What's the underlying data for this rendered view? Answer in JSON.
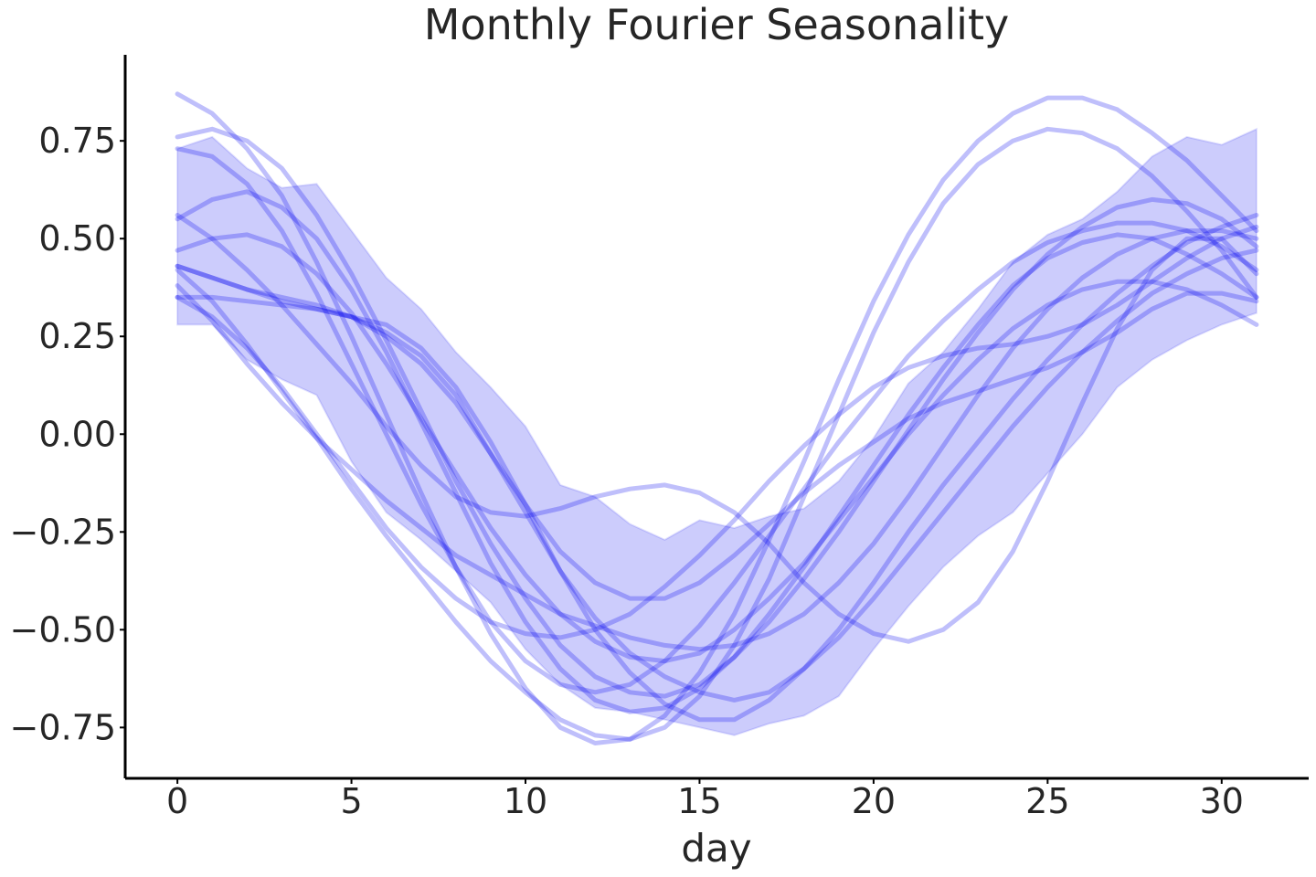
{
  "chart_data": {
    "type": "line",
    "title": "Monthly Fourier Seasonality",
    "xlabel": "day",
    "ylabel": "",
    "xlim": [
      -1.5,
      32.5
    ],
    "ylim": [
      -0.88,
      0.97
    ],
    "x_ticks": [
      0,
      5,
      10,
      15,
      20,
      25,
      30
    ],
    "x_tick_labels": [
      "0",
      "5",
      "10",
      "15",
      "20",
      "25",
      "30"
    ],
    "y_ticks": [
      0.75,
      0.5,
      0.25,
      0.0,
      -0.25,
      -0.5,
      -0.75
    ],
    "y_tick_labels": [
      "0.75",
      "0.50",
      "0.25",
      "0.00",
      "−0.25",
      "−0.50",
      "−0.75"
    ],
    "grid": false,
    "colors": {
      "series": "#0000ee",
      "text": "#262626",
      "axis": "#000000"
    },
    "band": {
      "x": [
        0,
        1,
        2,
        3,
        4,
        5,
        6,
        7,
        8,
        9,
        10,
        11,
        12,
        13,
        14,
        15,
        16,
        17,
        18,
        19,
        20,
        21,
        22,
        23,
        24,
        25,
        26,
        27,
        28,
        29,
        30,
        31
      ],
      "upper": [
        0.73,
        0.76,
        0.68,
        0.63,
        0.64,
        0.52,
        0.4,
        0.32,
        0.21,
        0.12,
        0.02,
        -0.13,
        -0.16,
        -0.23,
        -0.27,
        -0.22,
        -0.24,
        -0.21,
        -0.19,
        -0.12,
        -0.01,
        0.13,
        0.21,
        0.32,
        0.44,
        0.51,
        0.55,
        0.62,
        0.71,
        0.76,
        0.74,
        0.78
      ],
      "lower": [
        0.28,
        0.28,
        0.19,
        0.14,
        0.1,
        -0.07,
        -0.2,
        -0.27,
        -0.35,
        -0.43,
        -0.55,
        -0.64,
        -0.7,
        -0.71,
        -0.73,
        -0.75,
        -0.77,
        -0.74,
        -0.72,
        -0.67,
        -0.55,
        -0.44,
        -0.34,
        -0.26,
        -0.2,
        -0.1,
        0.0,
        0.12,
        0.19,
        0.24,
        0.28,
        0.31
      ]
    },
    "series": [
      {
        "x": [
          0,
          1,
          2,
          3,
          4,
          5,
          6,
          7,
          8,
          9,
          10,
          11,
          12,
          13,
          14,
          15,
          16,
          17,
          18,
          19,
          20,
          21,
          22,
          23,
          24,
          25,
          26,
          27,
          28,
          29,
          30,
          31
        ],
        "values": [
          0.87,
          0.82,
          0.73,
          0.61,
          0.44,
          0.25,
          0.05,
          -0.15,
          -0.34,
          -0.51,
          -0.65,
          -0.75,
          -0.79,
          -0.78,
          -0.72,
          -0.61,
          -0.46,
          -0.27,
          -0.07,
          0.14,
          0.34,
          0.51,
          0.65,
          0.75,
          0.82,
          0.86,
          0.86,
          0.83,
          0.77,
          0.7,
          0.61,
          0.52
        ]
      },
      {
        "x": [
          0,
          1,
          2,
          3,
          4,
          5,
          6,
          7,
          8,
          9,
          10,
          11,
          12,
          13,
          14,
          15,
          16,
          17,
          18,
          19,
          20,
          21,
          22,
          23,
          24,
          25,
          26,
          27,
          28,
          29,
          30,
          31
        ],
        "values": [
          0.42,
          0.34,
          0.23,
          0.11,
          -0.01,
          -0.14,
          -0.26,
          -0.37,
          -0.48,
          -0.58,
          -0.66,
          -0.73,
          -0.77,
          -0.78,
          -0.75,
          -0.67,
          -0.54,
          -0.37,
          -0.16,
          0.05,
          0.26,
          0.44,
          0.59,
          0.69,
          0.75,
          0.78,
          0.77,
          0.73,
          0.66,
          0.57,
          0.47,
          0.35
        ]
      },
      {
        "x": [
          0,
          1,
          2,
          3,
          4,
          5,
          6,
          7,
          8,
          9,
          10,
          11,
          12,
          13,
          14,
          15,
          16,
          17,
          18,
          19,
          20,
          21,
          22,
          23,
          24,
          25,
          26,
          27,
          28,
          29,
          30,
          31
        ],
        "values": [
          0.76,
          0.78,
          0.75,
          0.68,
          0.56,
          0.41,
          0.24,
          0.06,
          -0.12,
          -0.28,
          -0.42,
          -0.54,
          -0.62,
          -0.66,
          -0.67,
          -0.64,
          -0.57,
          -0.48,
          -0.37,
          -0.25,
          -0.12,
          0.01,
          0.14,
          0.26,
          0.37,
          0.46,
          0.53,
          0.58,
          0.6,
          0.59,
          0.55,
          0.48
        ]
      },
      {
        "x": [
          0,
          1,
          2,
          3,
          4,
          5,
          6,
          7,
          8,
          9,
          10,
          11,
          12,
          13,
          14,
          15,
          16,
          17,
          18,
          19,
          20,
          21,
          22,
          23,
          24,
          25,
          26,
          27,
          28,
          29,
          30,
          31
        ],
        "values": [
          0.73,
          0.71,
          0.64,
          0.52,
          0.36,
          0.18,
          0.0,
          -0.18,
          -0.34,
          -0.48,
          -0.58,
          -0.64,
          -0.66,
          -0.64,
          -0.58,
          -0.49,
          -0.38,
          -0.26,
          -0.14,
          -0.02,
          0.09,
          0.2,
          0.29,
          0.37,
          0.44,
          0.49,
          0.52,
          0.54,
          0.54,
          0.52,
          0.48,
          0.42
        ]
      },
      {
        "x": [
          0,
          1,
          2,
          3,
          4,
          5,
          6,
          7,
          8,
          9,
          10,
          11,
          12,
          13,
          14,
          15,
          16,
          17,
          18,
          19,
          20,
          21,
          22,
          23,
          24,
          25,
          26,
          27,
          28,
          29,
          30,
          31
        ],
        "values": [
          0.55,
          0.6,
          0.62,
          0.58,
          0.5,
          0.37,
          0.21,
          0.03,
          -0.15,
          -0.33,
          -0.48,
          -0.6,
          -0.68,
          -0.71,
          -0.7,
          -0.65,
          -0.57,
          -0.46,
          -0.34,
          -0.21,
          -0.08,
          0.05,
          0.17,
          0.28,
          0.38,
          0.45,
          0.49,
          0.51,
          0.5,
          0.46,
          0.41,
          0.35
        ]
      },
      {
        "x": [
          0,
          1,
          2,
          3,
          4,
          5,
          6,
          7,
          8,
          9,
          10,
          11,
          12,
          13,
          14,
          15,
          16,
          17,
          18,
          19,
          20,
          21,
          22,
          23,
          24,
          25,
          26,
          27,
          28,
          29,
          30,
          31
        ],
        "values": [
          0.47,
          0.5,
          0.51,
          0.48,
          0.41,
          0.31,
          0.18,
          0.04,
          -0.1,
          -0.24,
          -0.36,
          -0.46,
          -0.53,
          -0.57,
          -0.58,
          -0.56,
          -0.5,
          -0.42,
          -0.33,
          -0.22,
          -0.11,
          0.0,
          0.1,
          0.19,
          0.27,
          0.33,
          0.37,
          0.39,
          0.39,
          0.37,
          0.33,
          0.28
        ]
      },
      {
        "x": [
          0,
          1,
          2,
          3,
          4,
          5,
          6,
          7,
          8,
          9,
          10,
          11,
          12,
          13,
          14,
          15,
          16,
          17,
          18,
          19,
          20,
          21,
          22,
          23,
          24,
          25,
          26,
          27,
          28,
          29,
          30,
          31
        ],
        "values": [
          0.43,
          0.4,
          0.37,
          0.34,
          0.32,
          0.3,
          0.28,
          0.22,
          0.12,
          -0.02,
          -0.18,
          -0.35,
          -0.5,
          -0.61,
          -0.69,
          -0.73,
          -0.73,
          -0.68,
          -0.6,
          -0.5,
          -0.38,
          -0.25,
          -0.13,
          -0.02,
          0.09,
          0.19,
          0.28,
          0.36,
          0.43,
          0.49,
          0.53,
          0.56
        ]
      },
      {
        "x": [
          0,
          1,
          2,
          3,
          4,
          5,
          6,
          7,
          8,
          9,
          10,
          11,
          12,
          13,
          14,
          15,
          16,
          17,
          18,
          19,
          20,
          21,
          22,
          23,
          24,
          25,
          26,
          27,
          28,
          29,
          30,
          31
        ],
        "values": [
          0.38,
          0.29,
          0.18,
          0.08,
          -0.01,
          -0.09,
          -0.17,
          -0.24,
          -0.31,
          -0.36,
          -0.41,
          -0.46,
          -0.49,
          -0.52,
          -0.54,
          -0.55,
          -0.54,
          -0.51,
          -0.46,
          -0.38,
          -0.28,
          -0.16,
          -0.03,
          0.1,
          0.22,
          0.32,
          0.4,
          0.46,
          0.5,
          0.52,
          0.52,
          0.5
        ]
      },
      {
        "x": [
          0,
          1,
          2,
          3,
          4,
          5,
          6,
          7,
          8,
          9,
          10,
          11,
          12,
          13,
          14,
          15,
          16,
          17,
          18,
          19,
          20,
          21,
          22,
          23,
          24,
          25,
          26,
          27,
          28,
          29,
          30,
          31
        ],
        "values": [
          0.35,
          0.35,
          0.34,
          0.33,
          0.32,
          0.3,
          0.26,
          0.2,
          0.1,
          -0.05,
          -0.2,
          -0.35,
          -0.47,
          -0.56,
          -0.62,
          -0.66,
          -0.68,
          -0.66,
          -0.6,
          -0.52,
          -0.42,
          -0.31,
          -0.2,
          -0.09,
          0.02,
          0.12,
          0.21,
          0.29,
          0.36,
          0.41,
          0.45,
          0.47
        ]
      },
      {
        "x": [
          0,
          1,
          2,
          3,
          4,
          5,
          6,
          7,
          8,
          9,
          10,
          11,
          12,
          13,
          14,
          15,
          16,
          17,
          18,
          19,
          20,
          21,
          22,
          23,
          24,
          25,
          26,
          27,
          28,
          29,
          30,
          31
        ],
        "values": [
          0.56,
          0.5,
          0.42,
          0.33,
          0.23,
          0.13,
          0.02,
          -0.08,
          -0.16,
          -0.2,
          -0.21,
          -0.19,
          -0.16,
          -0.14,
          -0.13,
          -0.15,
          -0.2,
          -0.28,
          -0.38,
          -0.46,
          -0.51,
          -0.53,
          -0.5,
          -0.43,
          -0.3,
          -0.12,
          0.08,
          0.27,
          0.42,
          0.5,
          0.5,
          0.41
        ]
      },
      {
        "x": [
          0,
          1,
          2,
          3,
          4,
          5,
          6,
          7,
          8,
          9,
          10,
          11,
          12,
          13,
          14,
          15,
          16,
          17,
          18,
          19,
          20,
          21,
          22,
          23,
          24,
          25,
          26,
          27,
          28,
          29,
          30,
          31
        ],
        "values": [
          0.43,
          0.4,
          0.37,
          0.35,
          0.33,
          0.3,
          0.25,
          0.18,
          0.08,
          -0.05,
          -0.18,
          -0.3,
          -0.38,
          -0.42,
          -0.42,
          -0.38,
          -0.31,
          -0.23,
          -0.15,
          -0.08,
          -0.02,
          0.04,
          0.08,
          0.11,
          0.14,
          0.17,
          0.21,
          0.26,
          0.32,
          0.36,
          0.36,
          0.34
        ]
      },
      {
        "x": [
          0,
          1,
          2,
          3,
          4,
          5,
          6,
          7,
          8,
          9,
          10,
          11,
          12,
          13,
          14,
          15,
          16,
          17,
          18,
          19,
          20,
          21,
          22,
          23,
          24,
          25,
          26,
          27,
          28,
          29,
          30,
          31
        ],
        "values": [
          0.35,
          0.3,
          0.22,
          0.12,
          0.0,
          -0.12,
          -0.24,
          -0.34,
          -0.42,
          -0.48,
          -0.51,
          -0.52,
          -0.5,
          -0.46,
          -0.39,
          -0.31,
          -0.22,
          -0.12,
          -0.03,
          0.05,
          0.12,
          0.17,
          0.2,
          0.22,
          0.23,
          0.25,
          0.28,
          0.33,
          0.39,
          0.45,
          0.5,
          0.53
        ]
      }
    ]
  }
}
